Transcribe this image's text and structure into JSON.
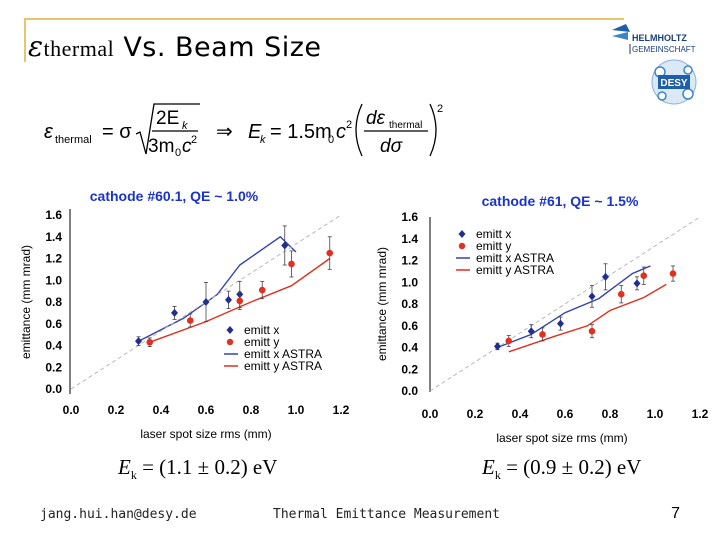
{
  "slide": {
    "title_symbol": "ε",
    "title_subscript": "thermal",
    "title_rest": " Vs. Beam Size",
    "footer_email": "jang.hui.han@desy.de",
    "footer_center": "Thermal Emittance Measurement",
    "page_number": "7",
    "accent_color": "#e8c56a",
    "cathode_label_color": "#1a33cc"
  },
  "logo": {
    "line1": "HELMHOLTZ",
    "line2": "GEMEINSCHAFT",
    "badge": "DESY"
  },
  "formula": {
    "lhs": "ε",
    "lhs_sub": "thermal",
    "eq1": "= σ",
    "num": "2E",
    "num_sub": "k",
    "den": "3m",
    "den_sub": "0",
    "den_tail": "c",
    "den_sup": "2",
    "implies": "⇒",
    "rhs_e": "E",
    "rhs_sub": "k",
    "rhs_eq": "= 1.5m",
    "rhs_m_sub": "0",
    "rhs_c": "c",
    "rhs_c_sup": "2",
    "d_num": "dε",
    "d_num_sub": "thermal",
    "d_den": "dσ",
    "outer_sup": "2"
  },
  "annotations": {
    "left": {
      "e": "E",
      "sub": "k",
      "expr": " = (1.1 ± 0.2) eV"
    },
    "right": {
      "e": "E",
      "sub": "k",
      "expr": " = (0.9 ± 0.2) eV"
    }
  },
  "chart_data": [
    {
      "type": "scatter",
      "title": "cathode #60.1, QE ~ 1.0%",
      "xlabel": "laser spot size rms (mm)",
      "ylabel": "emittance (mm mrad)",
      "xlim": [
        0.0,
        1.2
      ],
      "ylim": [
        0.0,
        1.6
      ],
      "xticks": [
        "0.0",
        "0.2",
        "0.4",
        "0.6",
        "0.8",
        "1.0",
        "1.2"
      ],
      "yticks": [
        "0.0",
        "0.2",
        "0.4",
        "0.6",
        "0.8",
        "1.0",
        "1.2",
        "1.4",
        "1.6"
      ],
      "legend": {
        "position": "bottom-right",
        "entries": [
          "emitt x",
          "emitt y",
          "emitt x ASTRA",
          "emitt y ASTRA"
        ]
      },
      "series": [
        {
          "name": "emitt x",
          "kind": "points",
          "color": "#1f2f8f",
          "marker": "diamond",
          "x": [
            0.3,
            0.46,
            0.6,
            0.7,
            0.75,
            0.95
          ],
          "y": [
            0.44,
            0.7,
            0.8,
            0.82,
            0.87,
            1.32
          ],
          "err": [
            0.04,
            0.06,
            0.18,
            0.08,
            0.12,
            0.18
          ]
        },
        {
          "name": "emitt y",
          "kind": "points",
          "color": "#e03020",
          "marker": "circle",
          "x": [
            0.35,
            0.53,
            0.75,
            0.85,
            0.98,
            1.15
          ],
          "y": [
            0.43,
            0.63,
            0.81,
            0.91,
            1.15,
            1.25
          ],
          "err": [
            0.04,
            0.06,
            0.08,
            0.08,
            0.12,
            0.15
          ]
        },
        {
          "name": "emitt x ASTRA",
          "kind": "line",
          "color": "#3344aa",
          "x": [
            0.3,
            0.5,
            0.65,
            0.75,
            0.93,
            1.0
          ],
          "y": [
            0.44,
            0.65,
            0.87,
            1.14,
            1.4,
            1.26
          ]
        },
        {
          "name": "emitt y ASTRA",
          "kind": "line",
          "color": "#e03020",
          "x": [
            0.35,
            0.6,
            0.8,
            0.98,
            1.15
          ],
          "y": [
            0.43,
            0.62,
            0.8,
            0.95,
            1.2
          ]
        },
        {
          "name": "guide",
          "kind": "dashed",
          "color": "#b8b8b8",
          "x": [
            0.0,
            1.2
          ],
          "y": [
            0.0,
            1.6
          ]
        }
      ]
    },
    {
      "type": "scatter",
      "title": "cathode #61, QE ~ 1.5%",
      "xlabel": "laser spot size rms (mm)",
      "ylabel": "emittance (mm mrad)",
      "xlim": [
        0.0,
        1.2
      ],
      "ylim": [
        0.0,
        1.6
      ],
      "xticks": [
        "0.0",
        "0.2",
        "0.4",
        "0.6",
        "0.8",
        "1.0",
        "1.2"
      ],
      "yticks": [
        "0.0",
        "0.2",
        "0.4",
        "0.6",
        "0.8",
        "1.0",
        "1.2",
        "1.4",
        "1.6"
      ],
      "legend": {
        "position": "top-left",
        "entries": [
          "emitt x",
          "emitt y",
          "emitt x ASTRA",
          "emitt y ASTRA"
        ]
      },
      "series": [
        {
          "name": "emitt x",
          "kind": "points",
          "color": "#1f2f8f",
          "marker": "diamond",
          "x": [
            0.3,
            0.45,
            0.58,
            0.72,
            0.78,
            0.92
          ],
          "y": [
            0.41,
            0.55,
            0.62,
            0.87,
            1.05,
            0.99
          ],
          "err": [
            0.03,
            0.06,
            0.06,
            0.1,
            0.12,
            0.06
          ]
        },
        {
          "name": "emitt y",
          "kind": "points",
          "color": "#e03020",
          "marker": "circle",
          "x": [
            0.35,
            0.5,
            0.72,
            0.85,
            0.95,
            1.08
          ],
          "y": [
            0.46,
            0.52,
            0.55,
            0.89,
            1.06,
            1.08
          ],
          "err": [
            0.05,
            0.06,
            0.06,
            0.08,
            0.08,
            0.07
          ]
        },
        {
          "name": "emitt x ASTRA",
          "kind": "line",
          "color": "#3344aa",
          "x": [
            0.3,
            0.45,
            0.6,
            0.75,
            0.9,
            0.98
          ],
          "y": [
            0.4,
            0.52,
            0.72,
            0.85,
            1.08,
            1.15
          ]
        },
        {
          "name": "emitt y ASTRA",
          "kind": "line",
          "color": "#e03020",
          "x": [
            0.35,
            0.55,
            0.7,
            0.8,
            0.95,
            1.05
          ],
          "y": [
            0.36,
            0.5,
            0.6,
            0.74,
            0.86,
            0.98
          ]
        },
        {
          "name": "guide",
          "kind": "dashed",
          "color": "#b8b8b8",
          "x": [
            0.0,
            1.2
          ],
          "y": [
            0.0,
            1.6
          ]
        }
      ]
    }
  ]
}
